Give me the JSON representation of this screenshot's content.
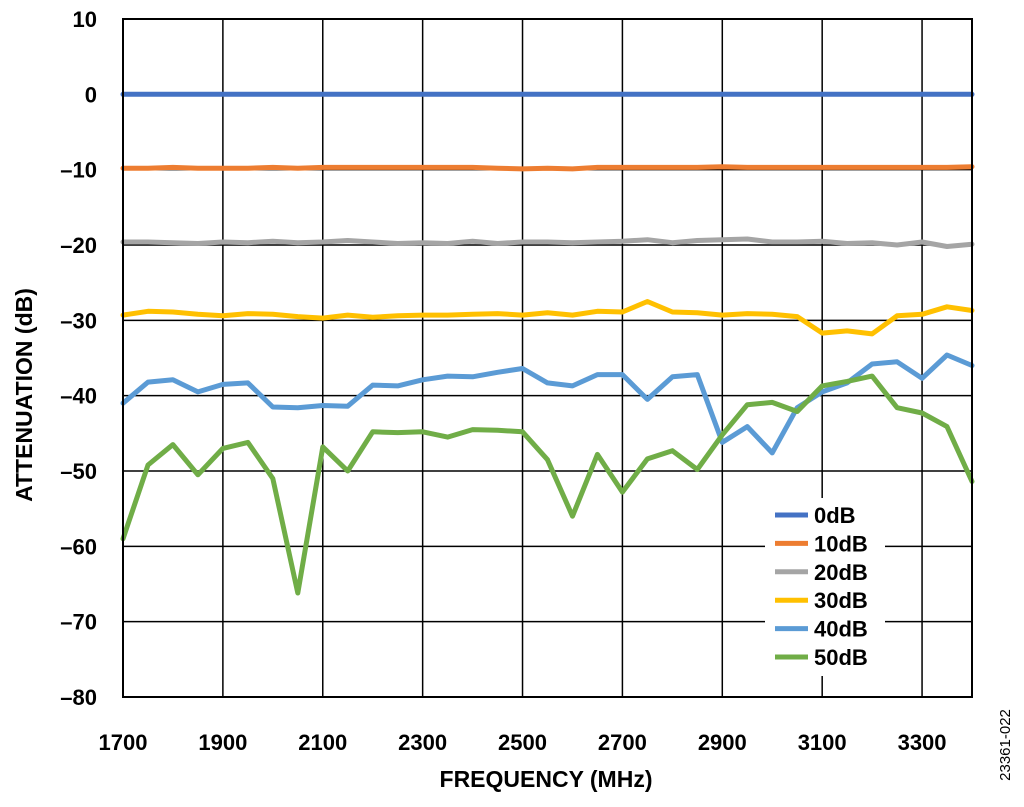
{
  "chart_data": {
    "type": "line",
    "title": "",
    "xlabel": "FREQUENCY (MHz)",
    "ylabel": "ATTENUATION (dB)",
    "xlim": [
      1700,
      3400
    ],
    "ylim": [
      -80,
      10
    ],
    "xticks": [
      1700,
      1900,
      2100,
      2300,
      2500,
      2700,
      2900,
      3100,
      3300
    ],
    "xtick_labels": [
      "1700",
      "1900",
      "2100",
      "2300",
      "2500",
      "2700",
      "2900",
      "3100",
      "3300"
    ],
    "yticks": [
      10,
      0,
      -10,
      -20,
      -30,
      -40,
      -50,
      -60,
      -70,
      -80
    ],
    "ytick_labels": [
      "10",
      "0",
      "–10",
      "–20",
      "–30",
      "–40",
      "–50",
      "–60",
      "–70",
      "–80"
    ],
    "grid": true,
    "legend_position": "bottom-right",
    "figure_id": "23361-022",
    "x": [
      1700,
      1750,
      1800,
      1850,
      1900,
      1950,
      2000,
      2050,
      2100,
      2150,
      2200,
      2250,
      2300,
      2350,
      2400,
      2450,
      2500,
      2550,
      2600,
      2650,
      2700,
      2750,
      2800,
      2850,
      2900,
      2950,
      3000,
      3050,
      3100,
      3150,
      3200,
      3250,
      3300,
      3350,
      3400
    ],
    "series": [
      {
        "name": "0dB",
        "color": "#4472C4",
        "values": [
          0,
          0,
          0,
          0,
          0,
          0,
          0,
          0,
          0,
          0,
          0,
          0,
          0,
          0,
          0,
          0,
          0,
          0,
          0,
          0,
          0,
          0,
          0,
          0,
          0,
          0,
          0,
          0,
          0,
          0,
          0,
          0,
          0,
          0,
          0
        ]
      },
      {
        "name": "10dB",
        "color": "#ED7D31",
        "values": [
          -9.8,
          -9.8,
          -9.7,
          -9.8,
          -9.8,
          -9.8,
          -9.7,
          -9.8,
          -9.7,
          -9.7,
          -9.7,
          -9.7,
          -9.7,
          -9.7,
          -9.7,
          -9.8,
          -9.9,
          -9.8,
          -9.9,
          -9.7,
          -9.7,
          -9.7,
          -9.7,
          -9.7,
          -9.6,
          -9.7,
          -9.7,
          -9.7,
          -9.7,
          -9.7,
          -9.7,
          -9.7,
          -9.7,
          -9.7,
          -9.6
        ]
      },
      {
        "name": "20dB",
        "color": "#A5A5A5",
        "values": [
          -19.6,
          -19.6,
          -19.7,
          -19.8,
          -19.6,
          -19.7,
          -19.5,
          -19.7,
          -19.6,
          -19.4,
          -19.6,
          -19.8,
          -19.7,
          -19.8,
          -19.5,
          -19.8,
          -19.6,
          -19.6,
          -19.7,
          -19.6,
          -19.5,
          -19.3,
          -19.7,
          -19.4,
          -19.3,
          -19.2,
          -19.6,
          -19.6,
          -19.5,
          -19.8,
          -19.7,
          -20,
          -19.6,
          -20.2,
          -19.9
        ]
      },
      {
        "name": "30dB",
        "color": "#FFC000",
        "values": [
          -29.3,
          -28.8,
          -28.9,
          -29.2,
          -29.4,
          -29.1,
          -29.2,
          -29.5,
          -29.7,
          -29.3,
          -29.6,
          -29.4,
          -29.3,
          -29.3,
          -29.2,
          -29.1,
          -29.3,
          -29,
          -29.3,
          -28.8,
          -28.9,
          -27.5,
          -28.9,
          -29,
          -29.3,
          -29.1,
          -29.2,
          -29.5,
          -31.7,
          -31.4,
          -31.8,
          -29.4,
          -29.2,
          -28.2,
          -28.7
        ]
      },
      {
        "name": "40dB",
        "color": "#5B9BD5",
        "values": [
          -41,
          -38.2,
          -37.9,
          -39.5,
          -38.5,
          -38.3,
          -41.5,
          -41.6,
          -41.3,
          -41.4,
          -38.6,
          -38.7,
          -37.9,
          -37.4,
          -37.5,
          -36.9,
          -36.4,
          -38.3,
          -38.7,
          -37.2,
          -37.2,
          -40.5,
          -37.5,
          -37.2,
          -46.2,
          -44.1,
          -47.6,
          -41.6,
          -39.5,
          -38.3,
          -35.8,
          -35.5,
          -37.7,
          -34.6,
          -36
        ]
      },
      {
        "name": "50dB",
        "color": "#70AD47",
        "values": [
          -59,
          -49.2,
          -46.5,
          -50.5,
          -47,
          -46.2,
          -51,
          -66.2,
          -46.8,
          -50,
          -44.8,
          -44.9,
          -44.8,
          -45.5,
          -44.5,
          -44.6,
          -44.8,
          -48.5,
          -56,
          -47.8,
          -52.8,
          -48.4,
          -47.3,
          -49.8,
          -45.2,
          -41.2,
          -40.9,
          -42.1,
          -38.7,
          -38.1,
          -37.4,
          -41.6,
          -42.3,
          -44.1,
          -51.4
        ]
      }
    ]
  }
}
